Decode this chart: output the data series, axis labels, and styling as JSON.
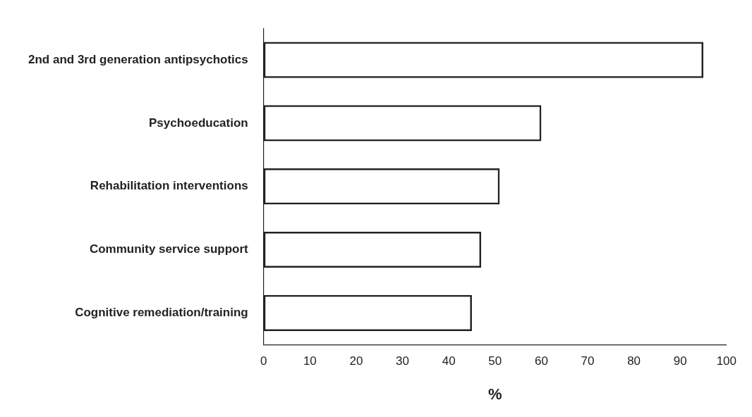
{
  "chart_data": {
    "type": "bar",
    "orientation": "horizontal",
    "xlabel": "%",
    "categories": [
      "2nd and 3rd generation antipsychotics",
      "Psychoeducation",
      "Rehabilitation interventions",
      "Community service support",
      "Cognitive remediation/training"
    ],
    "values": [
      95,
      60,
      51,
      47,
      45
    ],
    "color": "#222222",
    "xlim": [
      0,
      100
    ],
    "xticks": [
      0,
      10,
      20,
      30,
      40,
      50,
      60,
      70,
      80,
      90,
      100
    ],
    "grid": false,
    "legend": false
  }
}
